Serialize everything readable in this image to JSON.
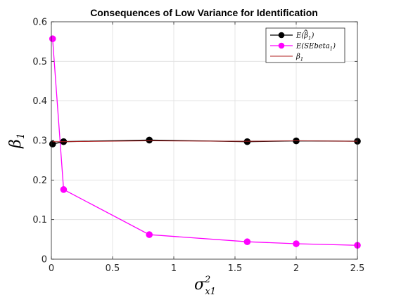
{
  "chart_data": {
    "type": "line",
    "title": "Consequences of Low Variance for Identification",
    "xlabel": "σ",
    "xlabel_super": "2",
    "xlabel_sub": "x1",
    "ylabel": "β",
    "ylabel_sub": "1",
    "xlim": [
      0,
      2.5
    ],
    "ylim": [
      0,
      0.6
    ],
    "xticks": [
      "0",
      "0.5",
      "1",
      "1.5",
      "2",
      "2.5"
    ],
    "yticks": [
      "0",
      "0.1",
      "0.2",
      "0.3",
      "0.4",
      "0.5",
      "0.6"
    ],
    "grid": true,
    "legend_position": "top-right",
    "series": [
      {
        "name": "E(β̂₁)",
        "legend_main": "E(",
        "legend_beta": "β",
        "legend_sub": "1",
        "legend_close": ")",
        "color": "#000000",
        "marker": "circle",
        "x": [
          0.01,
          0.1,
          0.8,
          1.6,
          2.0,
          2.5
        ],
        "y": [
          0.291,
          0.297,
          0.301,
          0.297,
          0.299,
          0.298
        ]
      },
      {
        "name": "E(SEbeta₁)",
        "legend_main": "E(SEbeta",
        "legend_sub": "1",
        "legend_close": ")",
        "color": "#ff00ff",
        "marker": "circle",
        "x": [
          0.01,
          0.1,
          0.8,
          1.6,
          2.0,
          2.5
        ],
        "y": [
          0.557,
          0.176,
          0.062,
          0.044,
          0.039,
          0.035
        ]
      },
      {
        "name": "β₁",
        "legend_main": "β",
        "legend_sub": "1",
        "legend_close": "",
        "color": "#b22222",
        "marker": "none",
        "x": [
          0.01,
          0.1,
          0.8,
          1.6,
          2.0,
          2.5
        ],
        "y": [
          0.297,
          0.297,
          0.299,
          0.298,
          0.299,
          0.298
        ]
      }
    ]
  }
}
